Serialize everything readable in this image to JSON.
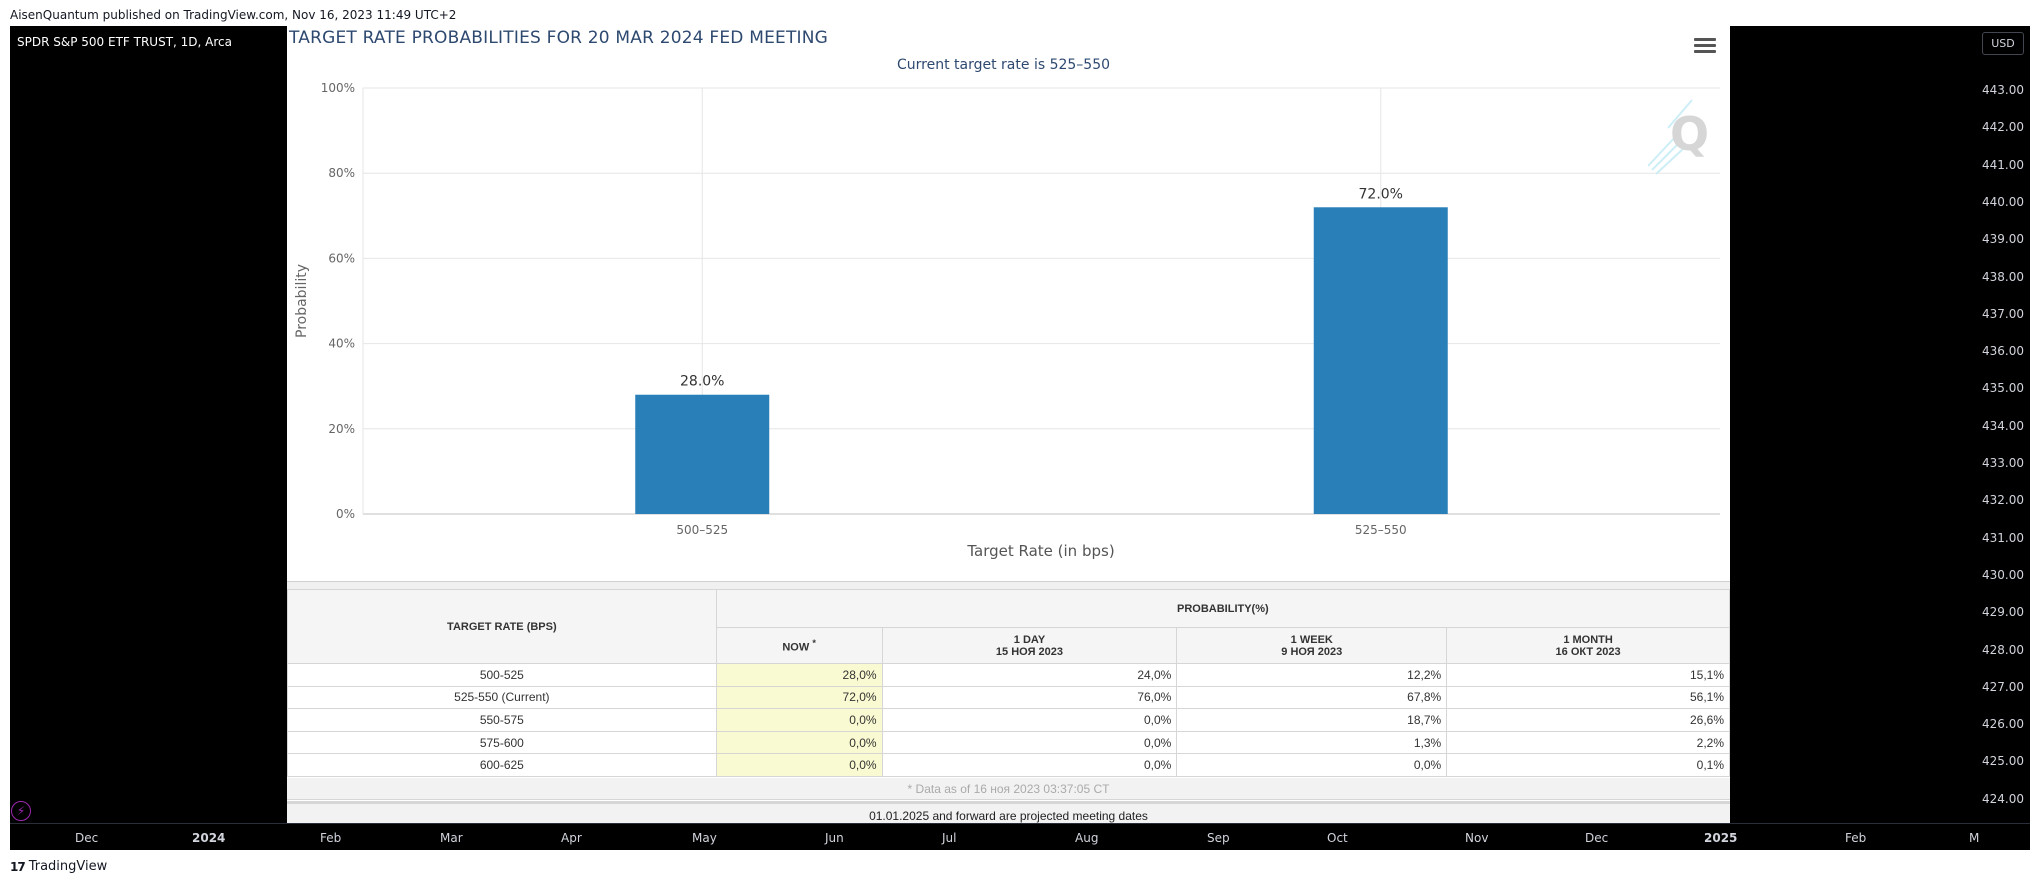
{
  "published_line": "AisenQuantum published on TradingView.com, Nov 16, 2023 11:49 UTC+2",
  "symbol_title": "SPDR S&P 500 ETF TRUST, 1D, Arca",
  "currency": "USD",
  "price_axis": [
    "443.00",
    "442.00",
    "441.00",
    "440.00",
    "439.00",
    "438.00",
    "437.00",
    "436.00",
    "435.00",
    "434.00",
    "433.00",
    "432.00",
    "431.00",
    "430.00",
    "429.00",
    "428.00",
    "427.00",
    "426.00",
    "425.00",
    "424.00"
  ],
  "time_axis": [
    {
      "label": "Dec",
      "bold": false
    },
    {
      "label": "2024",
      "bold": true
    },
    {
      "label": "Feb",
      "bold": false
    },
    {
      "label": "Mar",
      "bold": false
    },
    {
      "label": "Apr",
      "bold": false
    },
    {
      "label": "May",
      "bold": false
    },
    {
      "label": "Jun",
      "bold": false
    },
    {
      "label": "Jul",
      "bold": false
    },
    {
      "label": "Aug",
      "bold": false
    },
    {
      "label": "Sep",
      "bold": false
    },
    {
      "label": "Oct",
      "bold": false
    },
    {
      "label": "Nov",
      "bold": false
    },
    {
      "label": "Dec",
      "bold": false
    },
    {
      "label": "2025",
      "bold": true
    },
    {
      "label": "Feb",
      "bold": false
    },
    {
      "label": "M",
      "bold": false
    }
  ],
  "tv_logo_mark": "17",
  "brand": "TradingView",
  "chart_data": {
    "type": "bar",
    "title": "TARGET RATE PROBABILITIES FOR 20 MAR 2024 FED MEETING",
    "subtitle": "Current target rate is 525–550",
    "categories": [
      "500–525",
      "525–550"
    ],
    "values": [
      28.0,
      72.0
    ],
    "data_labels": [
      "28.0%",
      "72.0%"
    ],
    "xlabel": "Target Rate (in bps)",
    "ylabel": "Probability",
    "ylim": [
      0,
      100
    ],
    "yticks": [
      "0%",
      "20%",
      "40%",
      "60%",
      "80%",
      "100%"
    ],
    "bar_color": "#2980b9",
    "grid": true
  },
  "table": {
    "col_target": "TARGET RATE (BPS)",
    "col_probability": "PROBABILITY(%)",
    "col_now": "NOW",
    "col_now_mark": "*",
    "col_1day": "1 DAY",
    "col_1day_date": "15 НОЯ 2023",
    "col_1week": "1 WEEK",
    "col_1week_date": "9 НОЯ 2023",
    "col_1month": "1 MONTH",
    "col_1month_date": "16 ОКТ 2023",
    "rows": [
      {
        "rate": "500-525",
        "now": "28,0%",
        "day": "24,0%",
        "week": "12,2%",
        "month": "15,1%"
      },
      {
        "rate": "525-550 (Current)",
        "now": "72,0%",
        "day": "76,0%",
        "week": "67,8%",
        "month": "56,1%"
      },
      {
        "rate": "550-575",
        "now": "0,0%",
        "day": "0,0%",
        "week": "18,7%",
        "month": "26,6%"
      },
      {
        "rate": "575-600",
        "now": "0,0%",
        "day": "0,0%",
        "week": "1,3%",
        "month": "2,2%"
      },
      {
        "rate": "600-625",
        "now": "0,0%",
        "day": "0,0%",
        "week": "0,0%",
        "month": "0,1%"
      }
    ],
    "footnote": "* Data as of 16 ноя 2023 03:37:05 CT",
    "projected_note": "01.01.2025 and forward are projected meeting dates"
  }
}
